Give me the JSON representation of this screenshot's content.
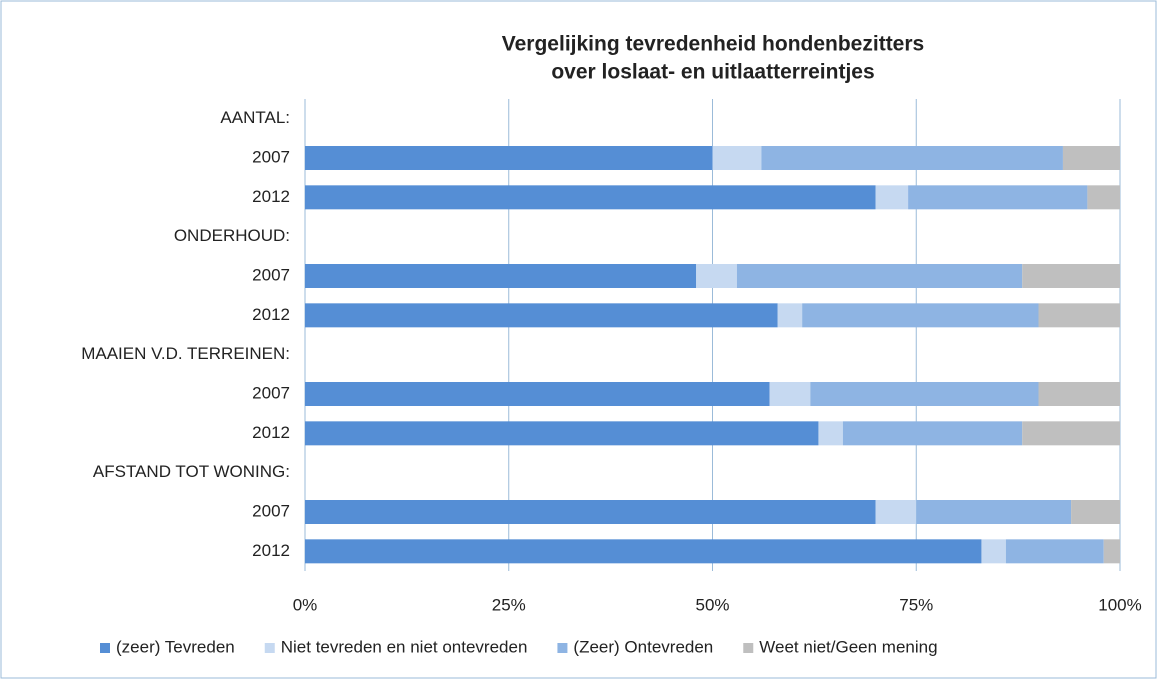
{
  "chart_data": {
    "type": "stacked_barh",
    "title": [
      "Vergelijking tevredenheid hondenbezitters",
      "over loslaat- en uitlaatterreintjes"
    ],
    "categories": [
      "AANTAL:",
      "2007",
      "2012",
      "ONDERHOUD:",
      "2007",
      "2012",
      "MAAIEN V.D. TERREINEN:",
      "2007",
      "2012",
      "AFSTAND TOT WONING:",
      "2007",
      "2012"
    ],
    "series": [
      {
        "name": "(zeer) Tevreden",
        "color": "#558ed5",
        "values": [
          null,
          50,
          70,
          null,
          48,
          58,
          null,
          57,
          63,
          null,
          70,
          83
        ]
      },
      {
        "name": "Niet tevreden en niet ontevreden",
        "color": "#c6d9f1",
        "values": [
          null,
          6,
          4,
          null,
          5,
          3,
          null,
          5,
          3,
          null,
          5,
          3
        ]
      },
      {
        "name": "(Zeer) Ontevreden",
        "color": "#8eb4e3",
        "values": [
          null,
          37,
          22,
          null,
          35,
          29,
          null,
          28,
          22,
          null,
          19,
          12
        ]
      },
      {
        "name": "Weet niet/Geen mening",
        "color": "#bfbfbf",
        "values": [
          null,
          7,
          4,
          null,
          12,
          10,
          null,
          10,
          12,
          null,
          6,
          2
        ]
      }
    ],
    "xlim": [
      0,
      100
    ],
    "xticks": [
      {
        "value": 0,
        "label": "0%"
      },
      {
        "value": 25,
        "label": "25%"
      },
      {
        "value": 50,
        "label": "50%"
      },
      {
        "value": 75,
        "label": "75%"
      },
      {
        "value": 100,
        "label": "100%"
      }
    ],
    "grid": true,
    "legend": "bottom"
  }
}
